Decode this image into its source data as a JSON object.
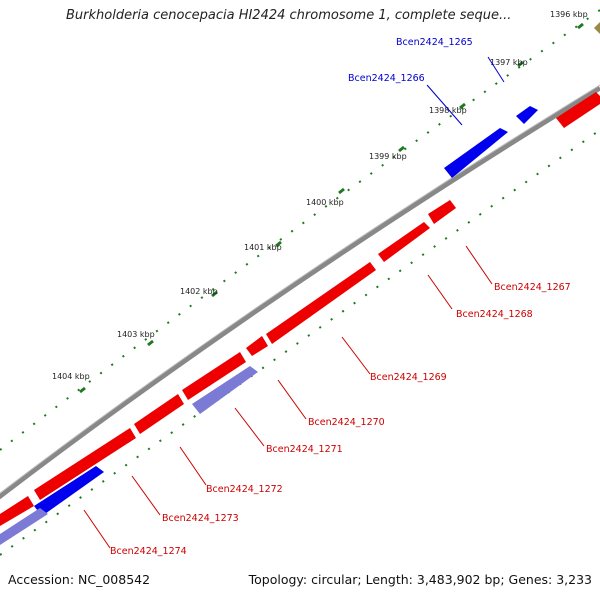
{
  "header": {
    "title": "Burkholderia cenocepacia HI2424 chromosome 1, complete seque..."
  },
  "footer": {
    "accession": "Accession: NC_008542",
    "topology": "Topology: circular; Length: 3,483,902 bp; Genes: 3,233"
  },
  "colors": {
    "backbone": "#888888",
    "forward_gene": "#0000ee",
    "forward_gene_faded": "#7b7bd6",
    "reverse_gene": "#ee0000",
    "ticks": "#1f7a1f",
    "forward_label": "#0000cc",
    "reverse_label": "#cc0000"
  },
  "scale": {
    "ticks": [
      "1396 kbp",
      "1397 kbp",
      "1398 kbp",
      "1399 kbp",
      "1400 kbp",
      "1401 kbp",
      "1402 kbp",
      "1403 kbp",
      "1404 kbp"
    ]
  },
  "genes": [
    {
      "name": "Bcen2424_1265",
      "strand": "forward"
    },
    {
      "name": "Bcen2424_1266",
      "strand": "forward"
    },
    {
      "name": "Bcen2424_1267",
      "strand": "reverse"
    },
    {
      "name": "Bcen2424_1268",
      "strand": "reverse"
    },
    {
      "name": "Bcen2424_1269",
      "strand": "reverse"
    },
    {
      "name": "Bcen2424_1270",
      "strand": "reverse"
    },
    {
      "name": "Bcen2424_1271",
      "strand": "forward"
    },
    {
      "name": "Bcen2424_1272",
      "strand": "reverse"
    },
    {
      "name": "Bcen2424_1273",
      "strand": "reverse"
    },
    {
      "name": "Bcen2424_1274",
      "strand": "forward"
    }
  ]
}
